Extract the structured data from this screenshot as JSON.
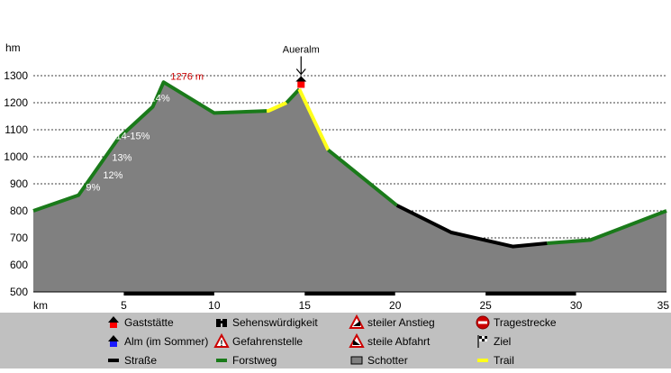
{
  "chart_data": {
    "type": "area",
    "ylabel": "hm",
    "xlabel": "km",
    "xlim": [
      0,
      35
    ],
    "ylim": [
      500,
      1300
    ],
    "x_ticks": [
      5,
      10,
      15,
      20,
      25,
      30,
      35
    ],
    "y_ticks": [
      500,
      600,
      700,
      800,
      900,
      1000,
      1100,
      1200,
      1300
    ],
    "grid": "horizontal dashed",
    "profile": [
      {
        "x": 0,
        "y": 800
      },
      {
        "x": 2.5,
        "y": 858
      },
      {
        "x": 4.7,
        "y": 1068
      },
      {
        "x": 6.6,
        "y": 1185
      },
      {
        "x": 7.2,
        "y": 1276
      },
      {
        "x": 10,
        "y": 1162
      },
      {
        "x": 13,
        "y": 1170
      },
      {
        "x": 14,
        "y": 1200
      },
      {
        "x": 14.7,
        "y": 1250
      },
      {
        "x": 16.3,
        "y": 1025
      },
      {
        "x": 20.1,
        "y": 820
      },
      {
        "x": 23.1,
        "y": 720
      },
      {
        "x": 26.5,
        "y": 668
      },
      {
        "x": 28.4,
        "y": 680
      },
      {
        "x": 30.8,
        "y": 692
      },
      {
        "x": 35,
        "y": 800
      }
    ],
    "track_segments": [
      {
        "from": 0,
        "to": 12.9,
        "surface": "forstweg"
      },
      {
        "from": 12.9,
        "to": 14.0,
        "surface": "trail"
      },
      {
        "from": 14.0,
        "to": 14.7,
        "surface": "forstweg"
      },
      {
        "from": 14.7,
        "to": 16.3,
        "surface": "trail"
      },
      {
        "from": 16.3,
        "to": 20.1,
        "surface": "forstweg"
      },
      {
        "from": 20.1,
        "to": 28.4,
        "surface": "strasse"
      },
      {
        "from": 28.4,
        "to": 35,
        "surface": "forstweg"
      }
    ],
    "ground_bands": [
      {
        "from": 5,
        "to": 10
      },
      {
        "from": 15,
        "to": 20
      },
      {
        "from": 25,
        "to": 30
      }
    ],
    "grade_labels": [
      {
        "text": "9%",
        "x": 3.3,
        "y": 875
      },
      {
        "text": "12%",
        "x": 4.4,
        "y": 920
      },
      {
        "text": "13%",
        "x": 4.9,
        "y": 985
      },
      {
        "text": "14-15%",
        "x": 5.5,
        "y": 1065
      },
      {
        "text": "14%",
        "x": 7.0,
        "y": 1205
      }
    ],
    "peak_label": {
      "text": "1276 m",
      "x": 8.5,
      "y": 1285
    },
    "poi": {
      "text": "Aueralm",
      "x": 14.8,
      "y": 1265
    },
    "colors": {
      "background": "#ffffff",
      "terrain_fill": "#808080",
      "forstweg": "#1a7a1a",
      "trail": "#ffff1a",
      "strasse": "#000000",
      "peak_label": "#cc0000",
      "gasthaus": "#ff0000",
      "legend_bg": "#c0c0c0"
    }
  },
  "legend": [
    {
      "label": "Gaststätte",
      "icon": "gasthaus-icon"
    },
    {
      "label": "Sehenswürdigkeit",
      "icon": "binoculars-icon"
    },
    {
      "label": "steiler Anstieg",
      "icon": "steep-ascent-icon"
    },
    {
      "label": "Tragestrecke",
      "icon": "stop-icon"
    },
    {
      "label": "Alm (im Sommer)",
      "icon": "alm-icon"
    },
    {
      "label": "Gefahrenstelle",
      "icon": "danger-icon"
    },
    {
      "label": "steile Abfahrt",
      "icon": "steep-descent-icon"
    },
    {
      "label": "Ziel",
      "icon": "finish-flag-icon"
    },
    {
      "label": "Straße",
      "icon": "road-line-icon"
    },
    {
      "label": "Forstweg",
      "icon": "forest-road-line-icon"
    },
    {
      "label": "Schotter",
      "icon": "gravel-box-icon"
    },
    {
      "label": "Trail",
      "icon": "trail-line-icon"
    }
  ]
}
